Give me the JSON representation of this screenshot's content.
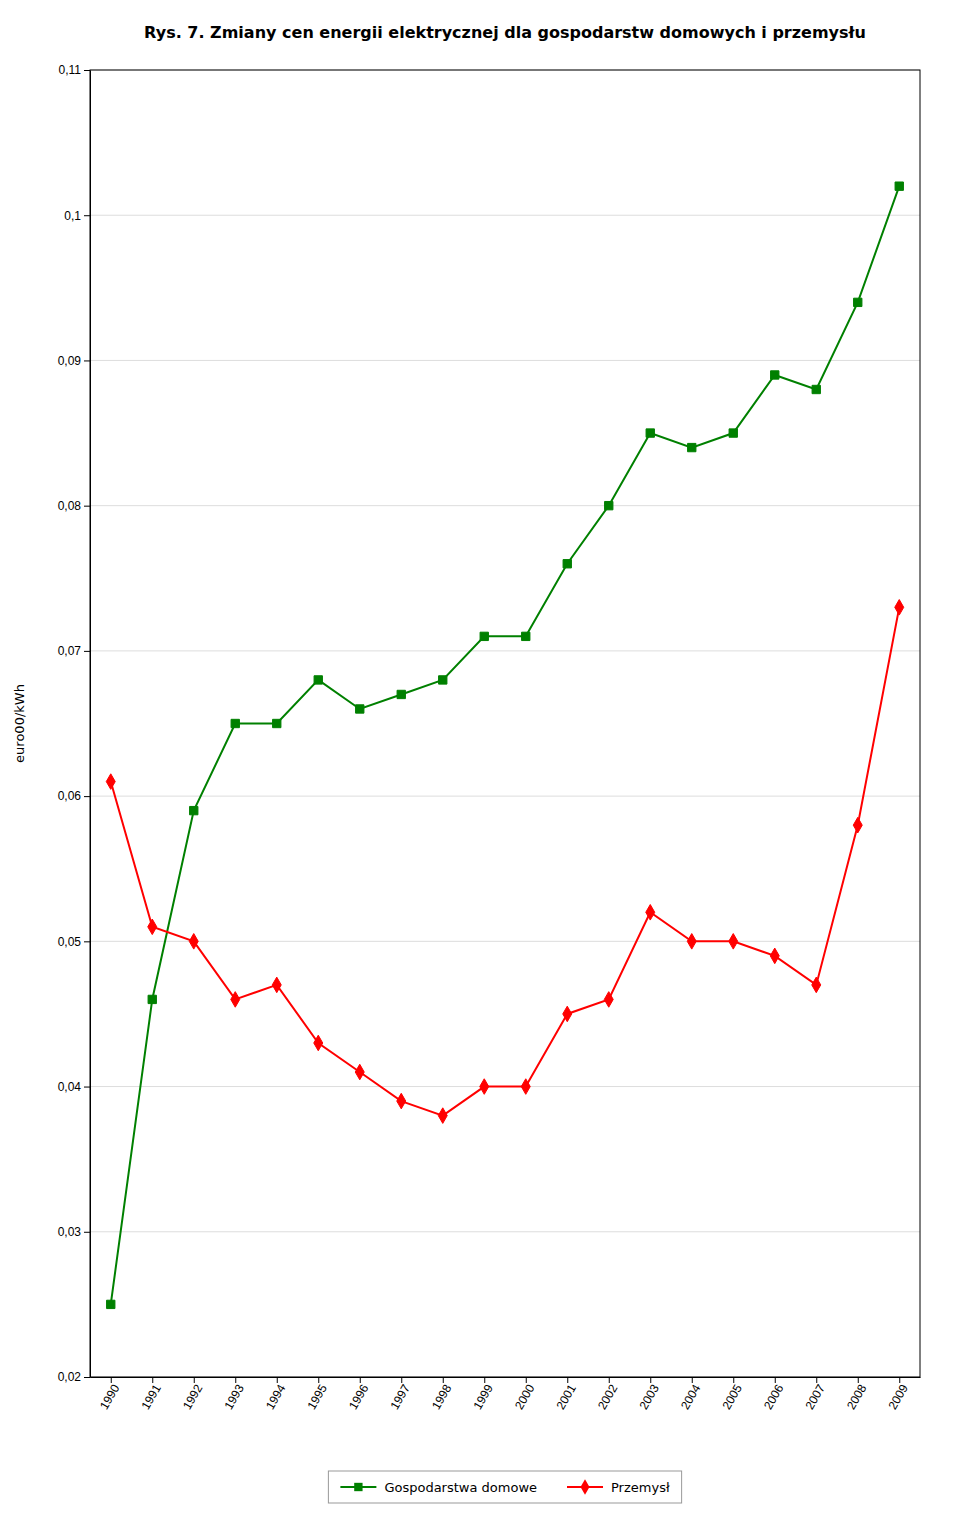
{
  "chart_data": {
    "type": "line",
    "title": "Rys. 7. Zmiany cen energii elektrycznej dla gospodarstw domowych i przemysłu",
    "y_label": "euro00/kWh",
    "x": [
      1990,
      1991,
      1992,
      1993,
      1994,
      1995,
      1996,
      1997,
      1998,
      1999,
      2000,
      2001,
      2002,
      2003,
      2004,
      2005,
      2006,
      2007,
      2008,
      2009
    ],
    "series": [
      {
        "name": "Gospodarstwa domowe",
        "color": "#008000",
        "marker": "square",
        "values": [
          0.025,
          0.046,
          0.059,
          0.065,
          0.065,
          0.068,
          0.066,
          0.067,
          0.068,
          0.071,
          0.071,
          0.076,
          0.08,
          0.085,
          0.084,
          0.085,
          0.089,
          0.088,
          0.094,
          0.102
        ]
      },
      {
        "name": "Przemysł",
        "color": "#ff0000",
        "marker": "diamond",
        "values": [
          0.061,
          0.051,
          0.05,
          0.046,
          0.047,
          0.043,
          0.041,
          0.039,
          0.038,
          0.04,
          0.04,
          0.045,
          0.046,
          0.052,
          0.05,
          0.05,
          0.049,
          0.047,
          0.058,
          0.073
        ]
      }
    ],
    "xlim": [
      1989.5,
      2009.5
    ],
    "xticks": [
      1990,
      1991,
      1992,
      1993,
      1994,
      1995,
      1996,
      1997,
      1998,
      1999,
      2000,
      2001,
      2002,
      2003,
      2004,
      2005,
      2006,
      2007,
      2008,
      2009
    ],
    "ylim": [
      0.02,
      0.11
    ],
    "yticks": [
      {
        "value": 0.02,
        "label": "0,02"
      },
      {
        "value": 0.03,
        "label": "0,03"
      },
      {
        "value": 0.04,
        "label": "0,04"
      },
      {
        "value": 0.05,
        "label": "0,05"
      },
      {
        "value": 0.06,
        "label": "0,06"
      },
      {
        "value": 0.07,
        "label": "0,07"
      },
      {
        "value": 0.08,
        "label": "0,08"
      },
      {
        "value": 0.09,
        "label": "0,09"
      },
      {
        "value": 0.1,
        "label": "0,1"
      },
      {
        "value": 0.11,
        "label": "0,11"
      }
    ],
    "grid": "y",
    "legend": "bottom"
  }
}
